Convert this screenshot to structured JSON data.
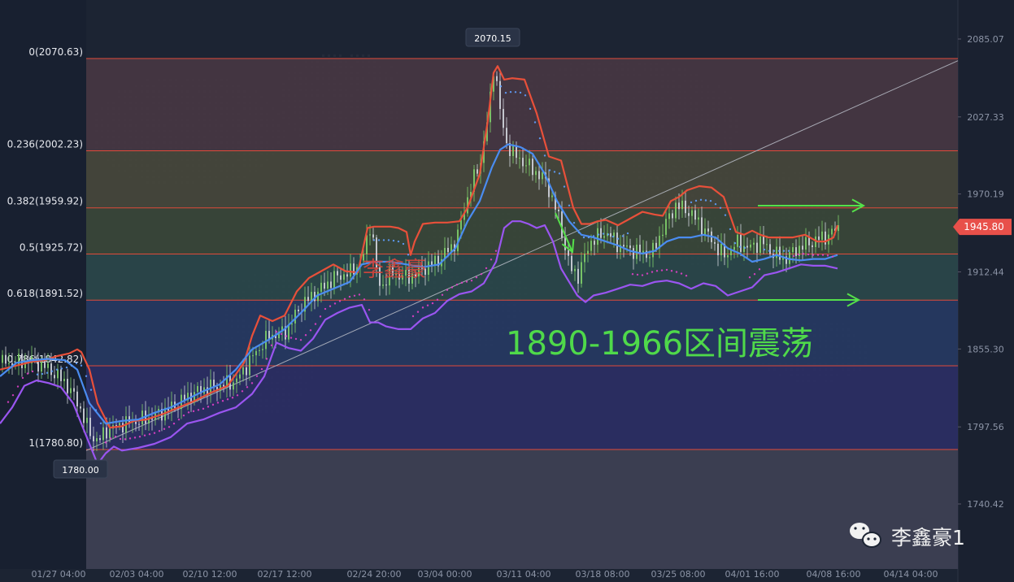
{
  "chart_data": {
    "type": "candlestick",
    "y_axis": {
      "ticks": [
        "2085.07",
        "2027.33",
        "1970.19",
        "1912.44",
        "1855.30",
        "1797.56",
        "1740.42"
      ],
      "tick_values": [
        2085.07,
        2027.33,
        1970.19,
        1912.44,
        1855.3,
        1797.56,
        1740.42
      ],
      "range": [
        1718,
        2100
      ]
    },
    "x_axis": {
      "ticks": [
        "01/27 04:00",
        "02/03 04:00",
        "02/10 12:00",
        "02/17 12:00",
        "02/24 20:00",
        "03/04 00:00",
        "03/11 04:00",
        "03/18 08:00",
        "03/25 08:00",
        "04/01 16:00",
        "04/08 16:00",
        "04/14 04:00"
      ]
    },
    "fibonacci": [
      {
        "label": "0(2070.63)",
        "value": 2070.63,
        "fill": "#4a3844"
      },
      {
        "label": "0.236(2002.23)",
        "value": 2002.23,
        "fill": "#4a4a3c"
      },
      {
        "label": "0.382(1959.92)",
        "value": 1959.92,
        "fill": "#3c4a3a"
      },
      {
        "label": "0.5(1925.72)",
        "value": 1925.72,
        "fill": "#2c4a4c"
      },
      {
        "label": "0.618(1891.52)",
        "value": 1891.52,
        "fill": "#273b66"
      },
      {
        "label": "0.786(1842.82)",
        "value": 1842.82,
        "fill": "#2d2f69"
      },
      {
        "label": "1(1780.80)",
        "value": 1780.8,
        "fill": "#3a3452"
      }
    ],
    "price_callouts": [
      {
        "label": "2070.15",
        "value": 2070.15
      },
      {
        "label": "1780.00",
        "value": 1780.0
      }
    ],
    "current_price": {
      "label": "1945.80",
      "value": 1945.8,
      "color": "#e8504a"
    },
    "annotations": {
      "author_watermark": "李鑫豪",
      "range_text": "1890-1966区间震荡",
      "wechat_label": "李鑫豪1"
    },
    "colors": {
      "band_upper": "#e8503a",
      "band_mid": "#4a8cf0",
      "band_lower": "#9a55f0",
      "candle_up": "#7fcf6a",
      "candle_down": "#d0d4dc",
      "fib_line": "#e04a3a",
      "trendline": "#b8bcc6",
      "arrow": "#55e04a"
    },
    "series": [
      {
        "name": "",
        "role": "band-upper",
        "x": [
          0,
          20,
          40,
          55,
          70,
          85,
          95,
          100,
          110,
          120,
          135,
          150,
          165,
          180,
          200,
          220,
          240,
          260,
          280,
          300,
          310,
          320,
          335,
          350,
          365,
          380,
          395,
          410,
          425,
          440,
          452,
          460,
          470,
          480,
          490,
          500,
          505,
          510,
          520,
          535,
          550,
          565,
          575,
          590,
          600,
          607,
          612,
          620,
          630,
          645,
          660,
          675,
          690,
          705,
          715,
          725,
          735,
          745,
          760,
          775,
          790,
          805,
          815,
          825,
          835,
          845,
          860,
          875,
          890,
          905,
          915,
          925,
          935,
          945,
          960,
          975,
          990,
          1005,
          1015,
          1025,
          1030
        ],
        "y": [
          1840,
          1843,
          1846,
          1847,
          1850,
          1852,
          1855,
          1853,
          1840,
          1815,
          1797,
          1798,
          1802,
          1803,
          1807,
          1812,
          1817,
          1823,
          1828,
          1845,
          1865,
          1880,
          1876,
          1880,
          1898,
          1908,
          1913,
          1918,
          1913,
          1912,
          1945,
          1946,
          1946,
          1946,
          1945,
          1942,
          1925,
          1935,
          1948,
          1949,
          1949,
          1950,
          1960,
          1985,
          2025,
          2060,
          2065,
          2055,
          2056,
          2055,
          2030,
          1998,
          1995,
          1960,
          1948,
          1948,
          1950,
          1951,
          1947,
          1952,
          1957,
          1955,
          1954,
          1965,
          1968,
          1973,
          1976,
          1975,
          1968,
          1942,
          1940,
          1943,
          1940,
          1938,
          1938,
          1938,
          1940,
          1935,
          1935,
          1938,
          1947
        ]
      },
      {
        "name": "",
        "role": "band-mid",
        "x": [
          0,
          20,
          40,
          60,
          80,
          95,
          110,
          130,
          150,
          170,
          190,
          210,
          230,
          250,
          270,
          290,
          310,
          330,
          350,
          370,
          390,
          410,
          430,
          445,
          460,
          480,
          500,
          520,
          540,
          560,
          575,
          590,
          605,
          615,
          625,
          640,
          655,
          670,
          685,
          700,
          715,
          730,
          745,
          760,
          775,
          790,
          805,
          820,
          835,
          850,
          865,
          880,
          895,
          910,
          925,
          940,
          955,
          970,
          985,
          1000,
          1015,
          1030
        ],
        "y": [
          1835,
          1845,
          1847,
          1848,
          1847,
          1840,
          1815,
          1800,
          1802,
          1803,
          1808,
          1812,
          1818,
          1824,
          1829,
          1840,
          1855,
          1862,
          1870,
          1882,
          1895,
          1900,
          1905,
          1918,
          1920,
          1920,
          1918,
          1916,
          1918,
          1930,
          1950,
          1965,
          1990,
          2003,
          2007,
          2005,
          2000,
          1985,
          1965,
          1950,
          1940,
          1938,
          1935,
          1932,
          1928,
          1926,
          1928,
          1935,
          1938,
          1938,
          1940,
          1938,
          1930,
          1926,
          1920,
          1922,
          1925,
          1922,
          1921,
          1922,
          1922,
          1925
        ]
      },
      {
        "name": "",
        "role": "band-lower",
        "x": [
          0,
          15,
          30,
          45,
          60,
          75,
          90,
          100,
          110,
          120,
          130,
          140,
          150,
          170,
          190,
          210,
          230,
          250,
          270,
          290,
          310,
          325,
          340,
          355,
          370,
          385,
          400,
          415,
          430,
          445,
          455,
          465,
          475,
          490,
          505,
          520,
          535,
          550,
          565,
          580,
          595,
          610,
          620,
          630,
          640,
          650,
          660,
          670,
          680,
          690,
          700,
          710,
          720,
          730,
          745,
          760,
          775,
          790,
          805,
          820,
          835,
          850,
          865,
          880,
          895,
          910,
          925,
          940,
          955,
          970,
          985,
          1000,
          1015,
          1030
        ],
        "y": [
          1800,
          1812,
          1828,
          1832,
          1830,
          1827,
          1815,
          1800,
          1785,
          1770,
          1778,
          1783,
          1780,
          1782,
          1785,
          1790,
          1800,
          1803,
          1808,
          1812,
          1822,
          1835,
          1860,
          1856,
          1854,
          1863,
          1877,
          1882,
          1886,
          1888,
          1875,
          1875,
          1872,
          1870,
          1870,
          1878,
          1882,
          1891,
          1896,
          1898,
          1904,
          1920,
          1945,
          1950,
          1950,
          1948,
          1945,
          1947,
          1935,
          1915,
          1905,
          1895,
          1890,
          1895,
          1897,
          1900,
          1903,
          1902,
          1905,
          1906,
          1904,
          1900,
          1904,
          1902,
          1895,
          1898,
          1901,
          1910,
          1912,
          1915,
          1918,
          1917,
          1917,
          1915
        ]
      },
      {
        "name": "",
        "role": "candles-close",
        "x": [
          0,
          20,
          40,
          60,
          80,
          95,
          110,
          120,
          130,
          150,
          170,
          190,
          210,
          230,
          250,
          270,
          290,
          310,
          330,
          350,
          370,
          390,
          410,
          430,
          445,
          455,
          465,
          480,
          500,
          520,
          540,
          560,
          575,
          590,
          600,
          607,
          612,
          620,
          630,
          640,
          655,
          670,
          685,
          700,
          710,
          725,
          745,
          760,
          780,
          800,
          815,
          830,
          845,
          860,
          875,
          890,
          905,
          920,
          935,
          950,
          965,
          980,
          995,
          1010,
          1020,
          1030
        ],
        "y": [
          1845,
          1845,
          1847,
          1840,
          1830,
          1815,
          1792,
          1787,
          1795,
          1800,
          1802,
          1806,
          1812,
          1820,
          1826,
          1828,
          1832,
          1850,
          1865,
          1868,
          1888,
          1898,
          1908,
          1912,
          1922,
          1950,
          1900,
          1912,
          1908,
          1915,
          1922,
          1935,
          1970,
          1995,
          2030,
          2070,
          2040,
          2010,
          2000,
          1995,
          1988,
          1980,
          1955,
          1915,
          1910,
          1935,
          1942,
          1932,
          1928,
          1925,
          1945,
          1962,
          1958,
          1948,
          1935,
          1924,
          1934,
          1930,
          1935,
          1926,
          1922,
          1930,
          1934,
          1938,
          1940,
          1946
        ]
      }
    ]
  }
}
